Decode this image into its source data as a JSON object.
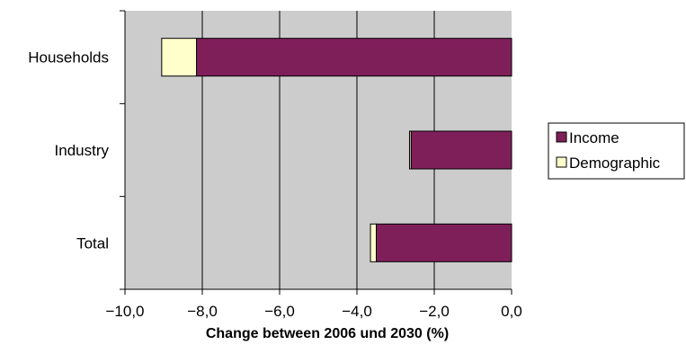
{
  "chart_data": {
    "type": "bar",
    "orientation": "horizontal",
    "stacked": true,
    "categories": [
      "Households",
      "Industry",
      "Total"
    ],
    "series": [
      {
        "name": "Income",
        "values": [
          -8.15,
          -2.6,
          -3.5
        ]
      },
      {
        "name": "Demographic",
        "values": [
          -0.9,
          -0.04,
          -0.15
        ]
      }
    ],
    "xlabel": "Change between 2006 und 2030 (%)",
    "xlim": [
      -10.0,
      0.0
    ],
    "x_ticks": [
      -10.0,
      -8.0,
      -6.0,
      -4.0,
      -2.0,
      0.0
    ],
    "x_tick_labels": [
      "−10,0",
      "−8,0",
      "−6,0",
      "−4,0",
      "−2,0",
      "0,0"
    ],
    "grid": "vertical",
    "legend_position": "right",
    "colors": {
      "Income": "#7f1f5a",
      "Demographic": "#ffffcc",
      "plot_background": "#cccccc",
      "gridline": "#000000"
    }
  }
}
